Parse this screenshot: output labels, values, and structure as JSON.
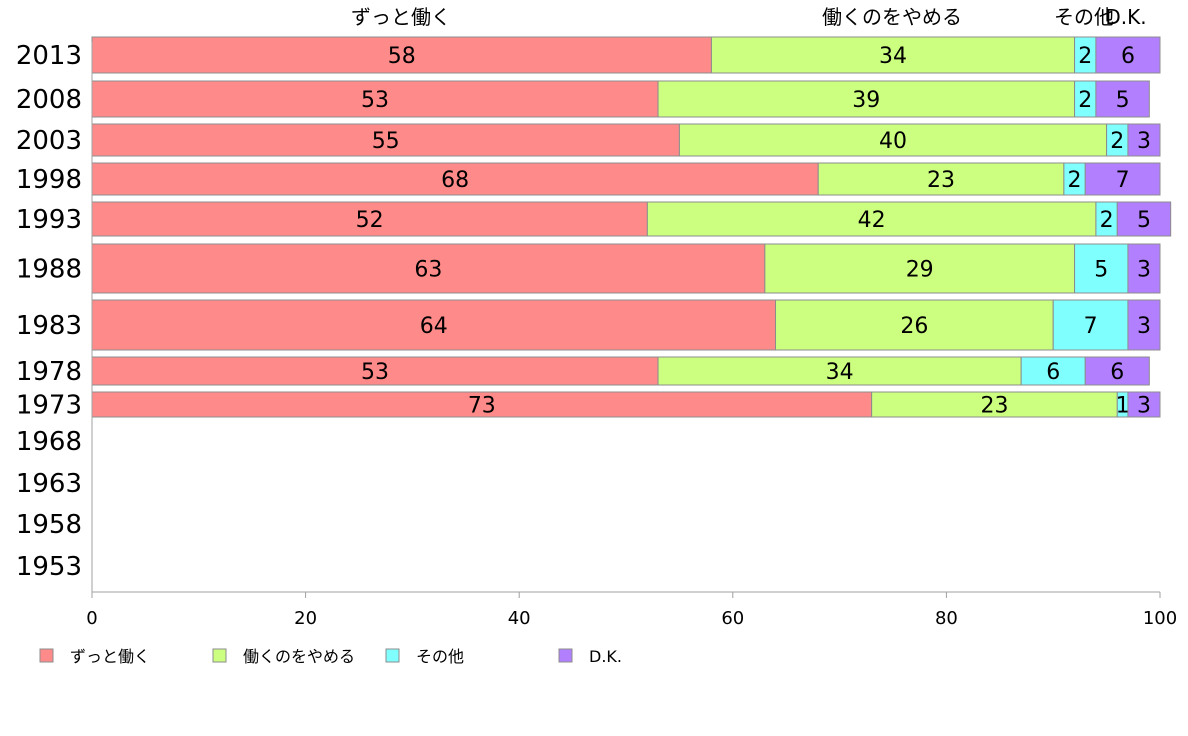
{
  "chart_data": {
    "type": "bar",
    "orientation": "horizontal",
    "stacked": true,
    "categories": [
      "2013",
      "2008",
      "2003",
      "1998",
      "1993",
      "1988",
      "1983",
      "1978",
      "1973",
      "1968",
      "1963",
      "1958",
      "1953"
    ],
    "series": [
      {
        "name": "ずっと働く",
        "color": "#ff8a8a",
        "values": [
          58,
          53,
          55,
          68,
          52,
          63,
          64,
          53,
          73,
          null,
          null,
          null,
          null
        ]
      },
      {
        "name": "働くのをやめる",
        "color": "#ccff80",
        "values": [
          34,
          39,
          40,
          23,
          42,
          29,
          26,
          34,
          23,
          null,
          null,
          null,
          null
        ]
      },
      {
        "name": "その他",
        "color": "#80ffff",
        "values": [
          2,
          2,
          2,
          2,
          2,
          5,
          7,
          6,
          1,
          null,
          null,
          null,
          null
        ]
      },
      {
        "name": "D.K.",
        "color": "#b280ff",
        "values": [
          6,
          5,
          3,
          7,
          5,
          3,
          3,
          6,
          3,
          null,
          null,
          null,
          null
        ]
      }
    ],
    "xlim": [
      0,
      100
    ],
    "xticks": [
      0,
      20,
      40,
      60,
      80,
      100
    ],
    "top_labels": [
      "ずっと働く",
      "働くのをやめる",
      "その他",
      "D.K."
    ],
    "legend_position": "bottom",
    "grid": false
  }
}
